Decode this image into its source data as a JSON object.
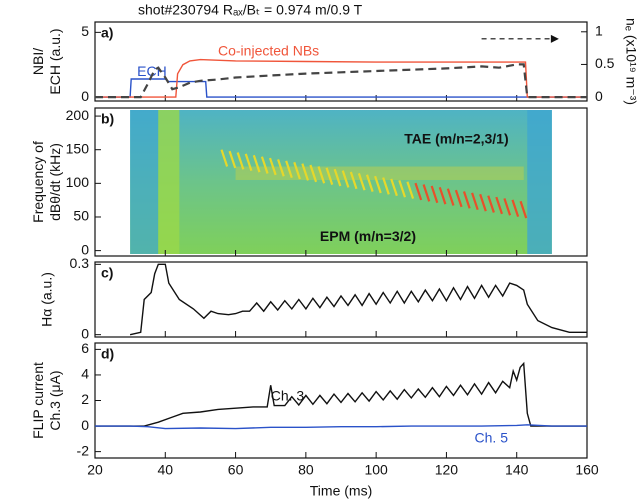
{
  "chart_data": [
    {
      "type": "line",
      "title": "shot#230794  Rₐₓ/Bₜ = 0.974 m/0.9 T",
      "panel_label": "a)",
      "y_label": [
        "NBI/",
        "ECH (a.u.)"
      ],
      "y2_label": "nₑ (x10¹⁹ m⁻³)",
      "xlim": [
        20,
        160
      ],
      "ylim": [
        -0.3,
        5.8
      ],
      "yticks": [
        0,
        5
      ],
      "y2lim": [
        -0.06,
        1.15
      ],
      "y2ticks": [
        0,
        0.5,
        1
      ],
      "series": [
        {
          "name": "ECH",
          "color": "#2a52c9",
          "x": [
            20,
            30,
            30.3,
            40,
            41,
            51.5,
            51.8,
            160
          ],
          "values": [
            0,
            0,
            1.4,
            1.4,
            1.2,
            1.2,
            0,
            0
          ]
        },
        {
          "name": "Co-injected NBs",
          "color": "#f0553a",
          "x": [
            20,
            43,
            43.5,
            45,
            47,
            50,
            60,
            80,
            100,
            120,
            140,
            142.5,
            143,
            160
          ],
          "values": [
            0,
            0,
            1.8,
            2.5,
            2.8,
            2.9,
            2.8,
            2.75,
            2.7,
            2.7,
            2.7,
            2.7,
            0,
            0
          ]
        },
        {
          "color": "#444444",
          "dash": true,
          "axis": "y2",
          "x": [
            20,
            33,
            35,
            37,
            38,
            40,
            42,
            44,
            47,
            50,
            55,
            60,
            70,
            80,
            90,
            100,
            110,
            120,
            130,
            135,
            140,
            142,
            143,
            160
          ],
          "values": [
            0,
            0,
            0.2,
            0.42,
            0.45,
            0.3,
            0.12,
            0.15,
            0.22,
            0.25,
            0.27,
            0.3,
            0.33,
            0.36,
            0.38,
            0.4,
            0.42,
            0.44,
            0.47,
            0.45,
            0.5,
            0.5,
            0,
            0
          ]
        }
      ]
    },
    {
      "type": "spectrogram",
      "panel_label": "b)",
      "y_label": [
        "Frequency of",
        "dBθ/dt (kHz)"
      ],
      "xlim": [
        20,
        160
      ],
      "ylim": [
        -8,
        212
      ],
      "yticks": [
        0,
        50,
        100,
        150,
        200
      ],
      "annotations": [
        "TAE (m/n=2,3/1)",
        "EPM (m/n=3/2)"
      ]
    },
    {
      "type": "line",
      "panel_label": "c)",
      "y_label": [
        "Hα (a.u.)"
      ],
      "xlim": [
        20,
        160
      ],
      "ylim": [
        -0.01,
        0.31
      ],
      "yticks": [
        0,
        0.3
      ],
      "series": [
        {
          "color": "#111111",
          "x": [
            30,
            33,
            34,
            36,
            37,
            38,
            40,
            41,
            44,
            48,
            51,
            53,
            55,
            58,
            60,
            62,
            64,
            66,
            68,
            70,
            72,
            74,
            76,
            78,
            80,
            82,
            84,
            86,
            88,
            90,
            92,
            94,
            96,
            98,
            100,
            102,
            104,
            106,
            108,
            110,
            112,
            114,
            116,
            118,
            120,
            122,
            124,
            126,
            128,
            130,
            132,
            134,
            136,
            138,
            140,
            142,
            143,
            146,
            150,
            155,
            160
          ],
          "values": [
            0,
            0.01,
            0.15,
            0.18,
            0.26,
            0.3,
            0.3,
            0.22,
            0.15,
            0.11,
            0.07,
            0.1,
            0.09,
            0.085,
            0.09,
            0.1,
            0.1,
            0.135,
            0.1,
            0.14,
            0.105,
            0.145,
            0.11,
            0.15,
            0.11,
            0.155,
            0.115,
            0.16,
            0.12,
            0.165,
            0.125,
            0.17,
            0.125,
            0.175,
            0.13,
            0.18,
            0.135,
            0.185,
            0.135,
            0.185,
            0.14,
            0.19,
            0.145,
            0.195,
            0.145,
            0.2,
            0.15,
            0.205,
            0.155,
            0.21,
            0.16,
            0.21,
            0.165,
            0.22,
            0.21,
            0.19,
            0.13,
            0.06,
            0.03,
            0.01,
            0.01
          ]
        }
      ]
    },
    {
      "type": "line",
      "panel_label": "d)",
      "y_label": [
        "FLIP current",
        "Ch.3 (μA)"
      ],
      "x_label": "Time (ms)",
      "xlim": [
        20,
        160
      ],
      "xticks": [
        20,
        40,
        60,
        80,
        100,
        120,
        140,
        160
      ],
      "ylim": [
        -2.5,
        6.5
      ],
      "yticks": [
        -2,
        0,
        2,
        4,
        6
      ],
      "series": [
        {
          "name": "Ch. 3",
          "color": "#111111",
          "x": [
            20,
            34,
            38,
            42,
            45,
            50,
            55,
            60,
            65,
            69,
            70,
            71,
            74,
            76,
            78,
            80,
            82,
            84,
            86,
            88,
            90,
            92,
            94,
            96,
            98,
            100,
            102,
            104,
            106,
            108,
            110,
            112,
            114,
            116,
            118,
            120,
            122,
            124,
            126,
            128,
            130,
            132,
            134,
            136,
            138,
            139,
            140,
            141,
            142,
            143,
            144,
            160
          ],
          "values": [
            0,
            0,
            0.3,
            0.7,
            1.0,
            1.1,
            1.3,
            1.4,
            1.5,
            1.5,
            3.2,
            1.6,
            1.6,
            2.3,
            1.65,
            2.4,
            1.7,
            2.4,
            1.75,
            2.5,
            1.85,
            2.55,
            1.9,
            2.6,
            1.95,
            2.7,
            2.05,
            2.75,
            2.1,
            2.85,
            2.2,
            2.9,
            2.25,
            3.0,
            2.3,
            3.1,
            2.4,
            3.2,
            2.45,
            3.3,
            2.5,
            3.4,
            2.6,
            3.5,
            3.0,
            4.3,
            3.6,
            4.6,
            4.9,
            1.0,
            0,
            0
          ]
        },
        {
          "name": "Ch. 5",
          "color": "#2a52c9",
          "x": [
            20,
            30,
            35,
            40,
            50,
            60,
            70,
            80,
            90,
            100,
            110,
            120,
            130,
            140,
            143,
            150,
            160
          ],
          "values": [
            0,
            0,
            -0.05,
            -0.2,
            -0.15,
            -0.2,
            -0.1,
            -0.1,
            -0.05,
            -0.05,
            0,
            0,
            0,
            0.05,
            0.1,
            0,
            0
          ]
        }
      ]
    }
  ]
}
